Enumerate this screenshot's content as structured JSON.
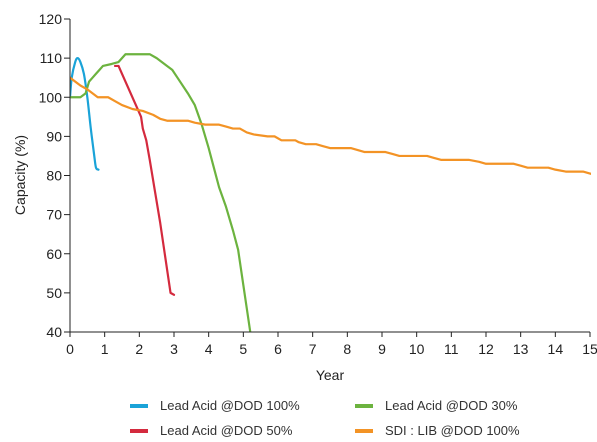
{
  "chart_data": {
    "type": "line",
    "title": "",
    "xlabel": "Year",
    "ylabel": "Capacity (%)",
    "xlim": [
      0,
      15
    ],
    "ylim": [
      40,
      120
    ],
    "xticks": [
      0,
      1,
      2,
      3,
      4,
      5,
      6,
      7,
      8,
      9,
      10,
      11,
      12,
      13,
      14,
      15
    ],
    "yticks": [
      40,
      50,
      60,
      70,
      80,
      90,
      100,
      110,
      120
    ],
    "grid": false,
    "legend_position": "bottom",
    "series": [
      {
        "name": "Lead Acid @DOD 100%",
        "color": "#1aa3d8",
        "shape": "smooth",
        "points": [
          [
            0,
            100
          ],
          [
            0.05,
            105
          ],
          [
            0.15,
            109
          ],
          [
            0.22,
            110
          ],
          [
            0.3,
            109
          ],
          [
            0.4,
            106
          ],
          [
            0.5,
            100
          ],
          [
            0.6,
            92
          ],
          [
            0.7,
            85
          ],
          [
            0.75,
            82
          ],
          [
            0.82,
            81.5
          ]
        ]
      },
      {
        "name": "Lead Acid @DOD 50%",
        "color": "#d42a3e",
        "shape": "linear",
        "points": [
          [
            1.3,
            108
          ],
          [
            1.4,
            108
          ],
          [
            1.5,
            106
          ],
          [
            1.7,
            102
          ],
          [
            1.9,
            98
          ],
          [
            2.05,
            95
          ],
          [
            2.1,
            92
          ],
          [
            2.2,
            89
          ],
          [
            2.3,
            84
          ],
          [
            2.45,
            76
          ],
          [
            2.6,
            68
          ],
          [
            2.75,
            59
          ],
          [
            2.9,
            50
          ],
          [
            3.0,
            49.5
          ]
        ]
      },
      {
        "name": "Lead Acid @DOD 30%",
        "color": "#6cb33f",
        "shape": "linear",
        "points": [
          [
            0,
            100
          ],
          [
            0.3,
            100
          ],
          [
            0.45,
            101
          ],
          [
            0.55,
            104
          ],
          [
            0.65,
            105
          ],
          [
            0.75,
            106
          ],
          [
            0.85,
            107
          ],
          [
            0.95,
            108
          ],
          [
            1.2,
            108.5
          ],
          [
            1.4,
            109
          ],
          [
            1.6,
            111
          ],
          [
            1.8,
            111
          ],
          [
            2.0,
            111
          ],
          [
            2.3,
            111
          ],
          [
            2.5,
            110
          ],
          [
            2.8,
            108
          ],
          [
            2.95,
            107
          ],
          [
            3.1,
            105
          ],
          [
            3.4,
            101
          ],
          [
            3.6,
            98
          ],
          [
            3.8,
            93
          ],
          [
            4.0,
            87
          ],
          [
            4.15,
            82
          ],
          [
            4.3,
            77
          ],
          [
            4.5,
            72
          ],
          [
            4.7,
            66
          ],
          [
            4.85,
            61
          ],
          [
            5.0,
            52
          ],
          [
            5.1,
            46
          ],
          [
            5.2,
            40
          ]
        ]
      },
      {
        "name": "SDI : LIB @DOD 100%",
        "color": "#f39325",
        "shape": "linear",
        "points": [
          [
            0,
            105
          ],
          [
            0.3,
            103
          ],
          [
            0.5,
            102
          ],
          [
            0.8,
            100
          ],
          [
            1.1,
            100
          ],
          [
            1.3,
            99
          ],
          [
            1.5,
            98
          ],
          [
            1.8,
            97
          ],
          [
            2.1,
            96.5
          ],
          [
            2.4,
            95.5
          ],
          [
            2.6,
            94.5
          ],
          [
            2.8,
            94
          ],
          [
            3.1,
            94
          ],
          [
            3.4,
            94
          ],
          [
            3.6,
            93.5
          ],
          [
            3.9,
            93
          ],
          [
            4.3,
            93
          ],
          [
            4.5,
            92.5
          ],
          [
            4.7,
            92
          ],
          [
            4.9,
            92
          ],
          [
            5.1,
            91
          ],
          [
            5.3,
            90.5
          ],
          [
            5.7,
            90
          ],
          [
            5.9,
            90
          ],
          [
            6.1,
            89
          ],
          [
            6.5,
            89
          ],
          [
            6.6,
            88.5
          ],
          [
            6.8,
            88
          ],
          [
            7.1,
            88
          ],
          [
            7.3,
            87.5
          ],
          [
            7.5,
            87
          ],
          [
            7.8,
            87
          ],
          [
            8.1,
            87
          ],
          [
            8.3,
            86.5
          ],
          [
            8.5,
            86
          ],
          [
            9.1,
            86
          ],
          [
            9.3,
            85.5
          ],
          [
            9.5,
            85
          ],
          [
            10.3,
            85
          ],
          [
            10.5,
            84.5
          ],
          [
            10.7,
            84
          ],
          [
            11.5,
            84
          ],
          [
            11.8,
            83.5
          ],
          [
            12.0,
            83
          ],
          [
            12.8,
            83
          ],
          [
            13.0,
            82.5
          ],
          [
            13.2,
            82
          ],
          [
            13.8,
            82
          ],
          [
            14.0,
            81.5
          ],
          [
            14.3,
            81
          ],
          [
            14.8,
            81
          ],
          [
            15.0,
            80.5
          ],
          [
            15.2,
            80
          ],
          [
            15.5,
            80
          ],
          [
            15.9,
            80
          ]
        ]
      }
    ]
  }
}
